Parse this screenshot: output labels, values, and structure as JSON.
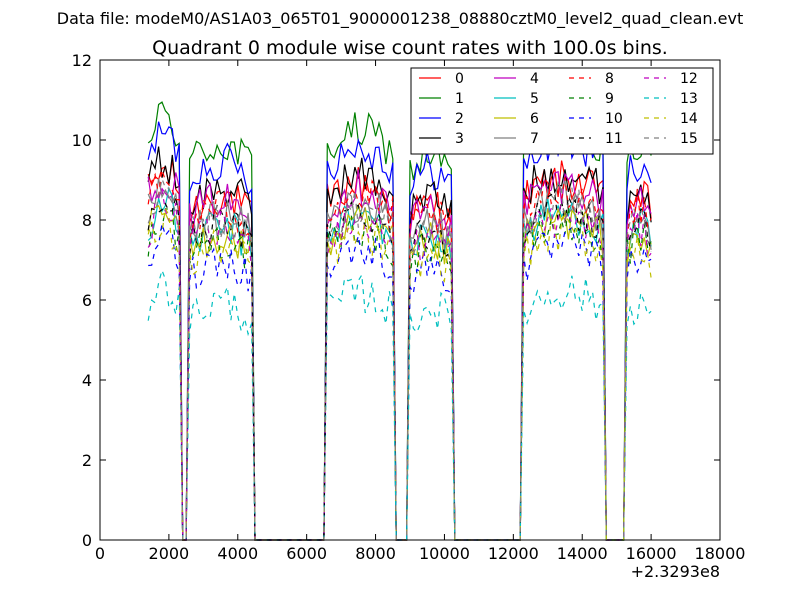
{
  "chart_data": {
    "type": "line",
    "suptitle": "Data file: modeM0/AS1A03_065T01_9000001238_08880cztM0_level2_quad_clean.evt",
    "title": "Quadrant 0 module wise count rates with 100.0s bins.",
    "xlabel": "",
    "ylabel": "",
    "x_offset_label": "+2.3293e8",
    "xlim": [
      0,
      18000
    ],
    "ylim": [
      0,
      12
    ],
    "xticks": [
      0,
      2000,
      4000,
      6000,
      8000,
      10000,
      12000,
      14000,
      16000,
      18000
    ],
    "xtick_labels": [
      "0",
      "2000",
      "4000",
      "6000",
      "8000",
      "10000",
      "12000",
      "14000",
      "16000",
      "18000"
    ],
    "yticks": [
      0,
      2,
      4,
      6,
      8,
      10,
      12
    ],
    "ytick_labels": [
      "0",
      "2",
      "4",
      "6",
      "8",
      "10",
      "12"
    ],
    "legend_position": "top-right",
    "bin_width_s": 100,
    "segments": [
      {
        "start": 1400,
        "end": 2300,
        "base": 8.6
      },
      {
        "start": 2550,
        "end": 4400,
        "base": 8.0
      },
      {
        "start": 6550,
        "end": 8500,
        "base": 8.3
      },
      {
        "start": 8950,
        "end": 10250,
        "base": 7.8
      },
      {
        "start": 12300,
        "end": 14650,
        "base": 8.4
      },
      {
        "start": 15250,
        "end": 16050,
        "base": 8.0
      }
    ],
    "series": [
      {
        "name": "0",
        "color": "#ff0000",
        "dash": "solid",
        "level": 8.3
      },
      {
        "name": "1",
        "color": "#008000",
        "dash": "solid",
        "level": 9.6
      },
      {
        "name": "2",
        "color": "#0000ff",
        "dash": "solid",
        "level": 9.2
      },
      {
        "name": "3",
        "color": "#000000",
        "dash": "solid",
        "level": 8.5
      },
      {
        "name": "4",
        "color": "#bf00bf",
        "dash": "solid",
        "level": 8.2
      },
      {
        "name": "5",
        "color": "#00bfbf",
        "dash": "solid",
        "level": 7.5
      },
      {
        "name": "6",
        "color": "#bfbf00",
        "dash": "solid",
        "level": 7.3
      },
      {
        "name": "7",
        "color": "#808080",
        "dash": "solid",
        "level": 7.8
      },
      {
        "name": "8",
        "color": "#ff0000",
        "dash": "dashed",
        "level": 8.0
      },
      {
        "name": "9",
        "color": "#008000",
        "dash": "dashed",
        "level": 7.2
      },
      {
        "name": "10",
        "color": "#0000ff",
        "dash": "dashed",
        "level": 6.7
      },
      {
        "name": "11",
        "color": "#000000",
        "dash": "dashed",
        "level": 7.6
      },
      {
        "name": "12",
        "color": "#bf00bf",
        "dash": "dashed",
        "level": 7.4
      },
      {
        "name": "13",
        "color": "#00bfbf",
        "dash": "dashed",
        "level": 5.6
      },
      {
        "name": "14",
        "color": "#bfbf00",
        "dash": "dashed",
        "level": 7.0
      },
      {
        "name": "15",
        "color": "#808080",
        "dash": "dashed",
        "level": 7.7
      }
    ]
  }
}
